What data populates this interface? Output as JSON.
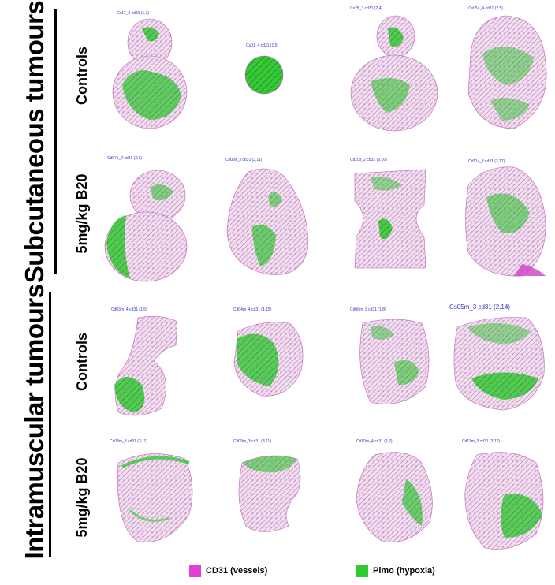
{
  "groups": {
    "subcutaneous": "Subcutaneous tumours",
    "intramuscular": "Intramuscular tumours"
  },
  "rows": {
    "controls": "Controls",
    "b20": "5mg/kg B20"
  },
  "captions": {
    "sc_c1": "Cs17_3 cd31 (1,3)",
    "sc_c2": "Cs01_4 cd31 (1,5)",
    "sc_c3": "Cs28_3 cd31 (2,4)",
    "sc_c4": "Cs05a_4 cd31 (2,5)",
    "sc_b1": "Cd07s_2 cd31 (3,3)",
    "sc_b2": "Cd09s_3 cd31 (3,11)",
    "sc_b3": "Cd10s_2 cd31 (3,16)",
    "sc_b4": "Cd11s_3 cd31 (3,17)",
    "im_c1": "Cd03m_4 cd31 (1,5)",
    "im_c2": "Cd04m_4 cd31 (1,15)",
    "im_c3": "Cd06m_3 cd31 (1,8)",
    "im_c4": "Cs05m_3 cd31 (2,14)",
    "im_b1": "Cd08m_3 cd31 (3,11)",
    "im_b2": "Cd09m_3 cd31 (3,11)",
    "im_b3": "Cd10m_4 cd31 (1,2)",
    "im_b4": "Cd11m_3 cd31 (3,17)"
  },
  "legend": {
    "cd31": "CD31 (vessels)",
    "pimo": "Pimo (hypoxia)"
  },
  "colors": {
    "cd31": "#e040d8",
    "pimo": "#2ecc2e"
  }
}
